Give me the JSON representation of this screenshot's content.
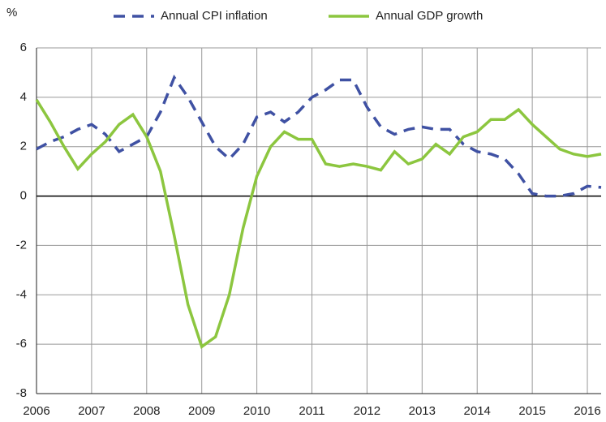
{
  "chart_data": {
    "type": "line",
    "y_label": "%",
    "x": [
      2006,
      2006.25,
      2006.5,
      2006.75,
      2007,
      2007.25,
      2007.5,
      2007.75,
      2008,
      2008.25,
      2008.5,
      2008.75,
      2009,
      2009.25,
      2009.5,
      2009.75,
      2010,
      2010.25,
      2010.5,
      2010.75,
      2011,
      2011.25,
      2011.5,
      2011.75,
      2012,
      2012.25,
      2012.5,
      2012.75,
      2013,
      2013.25,
      2013.5,
      2013.75,
      2014,
      2014.25,
      2014.5,
      2014.75,
      2015,
      2015.25,
      2015.5,
      2015.75,
      2016,
      2016.25
    ],
    "series": [
      {
        "name": "Annual CPI inflation",
        "color": "#3f51a3",
        "dash": true,
        "values": [
          1.9,
          2.2,
          2.4,
          2.7,
          2.9,
          2.5,
          1.8,
          2.1,
          2.4,
          3.4,
          4.8,
          4.0,
          3.0,
          2.0,
          1.5,
          2.1,
          3.2,
          3.4,
          3.0,
          3.4,
          4.0,
          4.3,
          4.7,
          4.7,
          3.6,
          2.8,
          2.5,
          2.7,
          2.8,
          2.7,
          2.7,
          2.1,
          1.8,
          1.7,
          1.5,
          0.9,
          0.1,
          0.0,
          0.0,
          0.1,
          0.4,
          0.35
        ]
      },
      {
        "name": "Annual GDP growth",
        "color": "#8cc63f",
        "dash": false,
        "values": [
          3.9,
          3.0,
          2.0,
          1.1,
          1.7,
          2.2,
          2.9,
          3.3,
          2.4,
          1.0,
          -1.6,
          -4.4,
          -6.1,
          -5.7,
          -4.0,
          -1.3,
          0.8,
          2.0,
          2.6,
          2.3,
          2.3,
          1.3,
          1.2,
          1.3,
          1.2,
          1.05,
          1.8,
          1.3,
          1.5,
          2.1,
          1.7,
          2.4,
          2.6,
          3.1,
          3.1,
          3.5,
          2.9,
          2.4,
          1.9,
          1.7,
          1.6,
          1.7
        ]
      }
    ],
    "xlim": [
      2006,
      2016.25
    ],
    "xticks": [
      2006,
      2007,
      2008,
      2009,
      2010,
      2011,
      2012,
      2013,
      2014,
      2015,
      2016
    ],
    "ylim": [
      -8,
      6
    ],
    "yticks": [
      -8,
      -6,
      -4,
      -2,
      0,
      2,
      4,
      6
    ],
    "grid": true,
    "legend": "top"
  }
}
